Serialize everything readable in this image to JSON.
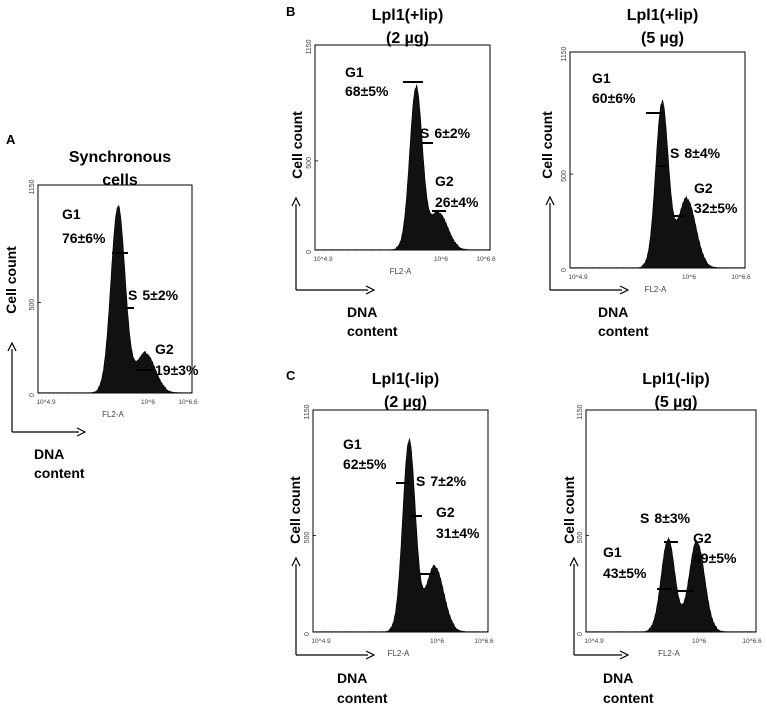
{
  "figure": {
    "panel_labels": {
      "A": "A",
      "B": "B",
      "C": "C"
    }
  },
  "axis_text": {
    "y_label": "Cell count",
    "x_label_line1": "DNA",
    "x_label_line2": "content",
    "instrument_x_label": "FL2-A",
    "y_ticks": [
      "0",
      "500",
      "1150"
    ],
    "x_ticks": [
      "10^4.9",
      "10^6",
      "10^6.6"
    ]
  },
  "chart_data": [
    {
      "type": "area",
      "panel": "A",
      "title_line1": "Synchronous",
      "title_line2": "cells",
      "xlabel": "FL2-A",
      "ylabel": "Cell count",
      "ylim": [
        0,
        1150
      ],
      "yticks": [
        0,
        500,
        1150
      ],
      "phases": [
        {
          "name": "G1",
          "value": "76±6%"
        },
        {
          "name": "S",
          "value": "5±2%"
        },
        {
          "name": "G2",
          "value": "19±3%"
        }
      ],
      "peaks": {
        "g1_height": 1020,
        "g2_height": 210
      }
    },
    {
      "type": "area",
      "panel": "B",
      "title_line1": "Lpl1(+lip)",
      "title_line2": "(2 µg)",
      "xlabel": "FL2-A",
      "ylabel": "Cell count",
      "ylim": [
        0,
        1150
      ],
      "yticks": [
        0,
        500,
        1150
      ],
      "phases": [
        {
          "name": "G1",
          "value": "68±5%"
        },
        {
          "name": "S",
          "value": "6±2%"
        },
        {
          "name": "G2",
          "value": "26±4%"
        }
      ],
      "peaks": {
        "g1_height": 900,
        "g2_height": 200
      }
    },
    {
      "type": "area",
      "panel": "B",
      "title_line1": "Lpl1(+lip)",
      "title_line2": "(5 µg)",
      "xlabel": "FL2-A",
      "ylabel": "Cell count",
      "ylim": [
        0,
        1150
      ],
      "yticks": [
        0,
        500,
        1150
      ],
      "phases": [
        {
          "name": "G1",
          "value": "60±6%"
        },
        {
          "name": "S",
          "value": "8±4%"
        },
        {
          "name": "G2",
          "value": "32±5%"
        }
      ],
      "peaks": {
        "g1_height": 870,
        "g2_height": 360
      }
    },
    {
      "type": "area",
      "panel": "C",
      "title_line1": "Lpl1(-lip)",
      "title_line2": "(2 µg)",
      "xlabel": "FL2-A",
      "ylabel": "Cell count",
      "ylim": [
        0,
        1150
      ],
      "yticks": [
        0,
        500,
        1150
      ],
      "phases": [
        {
          "name": "G1",
          "value": "62±5%"
        },
        {
          "name": "S",
          "value": "7±2%"
        },
        {
          "name": "G2",
          "value": "31±4%"
        }
      ],
      "peaks": {
        "g1_height": 980,
        "g2_height": 330
      }
    },
    {
      "type": "area",
      "panel": "C",
      "title_line1": "Lpl1(-lip)",
      "title_line2": "(5 µg)",
      "xlabel": "FL2-A",
      "ylabel": "Cell count",
      "ylim": [
        0,
        1150
      ],
      "yticks": [
        0,
        500,
        1150
      ],
      "phases": [
        {
          "name": "G1",
          "value": "43±5%"
        },
        {
          "name": "S",
          "value": "8±3%"
        },
        {
          "name": "G2",
          "value": "49±5%"
        }
      ],
      "peaks": {
        "g1_height": 470,
        "g2_height": 460
      }
    }
  ]
}
